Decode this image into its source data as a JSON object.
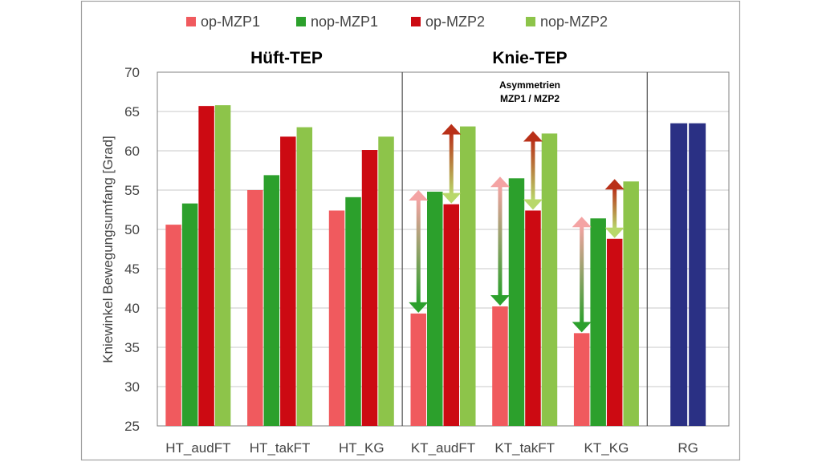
{
  "chart_data": {
    "type": "bar",
    "ylabel": "Kniewinkel Bewegungsumfang [Grad]",
    "ylim": [
      25,
      70
    ],
    "yticks": [
      25,
      30,
      35,
      40,
      45,
      50,
      55,
      60,
      65,
      70
    ],
    "grid": true,
    "legend_position": "top",
    "categories": [
      "HT_audFT",
      "HT_takFT",
      "HT_KG",
      "KT_audFT",
      "KT_takFT",
      "KT_KG",
      "RG"
    ],
    "group_labels": [
      "Hüft-TEP",
      "Knie-TEP"
    ],
    "annotation": [
      "Asymmetrien",
      "MZP1 / MZP2"
    ],
    "series": [
      {
        "name": "op-MZP1",
        "color": "#f05a5e",
        "values": [
          50.6,
          55.0,
          52.4,
          39.3,
          40.2,
          36.8,
          null
        ]
      },
      {
        "name": "nop-MZP1",
        "color": "#2ca02c",
        "values": [
          53.3,
          56.9,
          54.1,
          54.8,
          56.5,
          51.4,
          null
        ]
      },
      {
        "name": "op-MZP2",
        "color": "#cc0a12",
        "values": [
          65.7,
          61.8,
          60.1,
          53.2,
          52.4,
          48.8,
          null
        ]
      },
      {
        "name": "nop-MZP2",
        "color": "#8dc44a",
        "values": [
          65.8,
          63.0,
          61.8,
          63.1,
          62.2,
          56.1,
          null
        ]
      }
    ],
    "reference": {
      "color": "#2a3084",
      "values": [
        63.5,
        63.5
      ]
    }
  }
}
